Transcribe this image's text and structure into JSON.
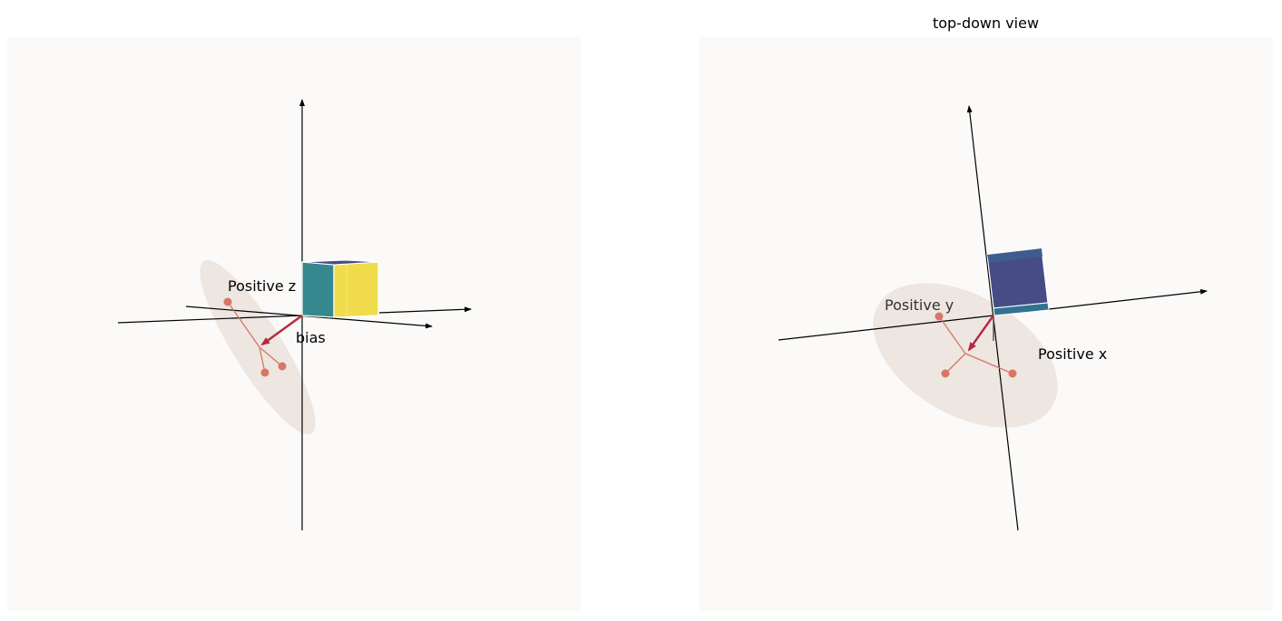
{
  "left_panel": {
    "title": "",
    "axis_label_z": "Positive z",
    "vector_label": "bias"
  },
  "right_panel": {
    "title": "top-down view",
    "axis_label_y": "Positive y",
    "axis_label_x": "Positive x"
  },
  "colors": {
    "panel_background": "#fbfaf9",
    "ellipse": "#ede6e1",
    "points": "#d97565",
    "bias_arrow": "#b5283f",
    "cube_teal": "#35898e",
    "cube_yellow": "#f0dc4a",
    "cube_navy": "#474b86",
    "cube_blue_edge": "#2f7390"
  }
}
